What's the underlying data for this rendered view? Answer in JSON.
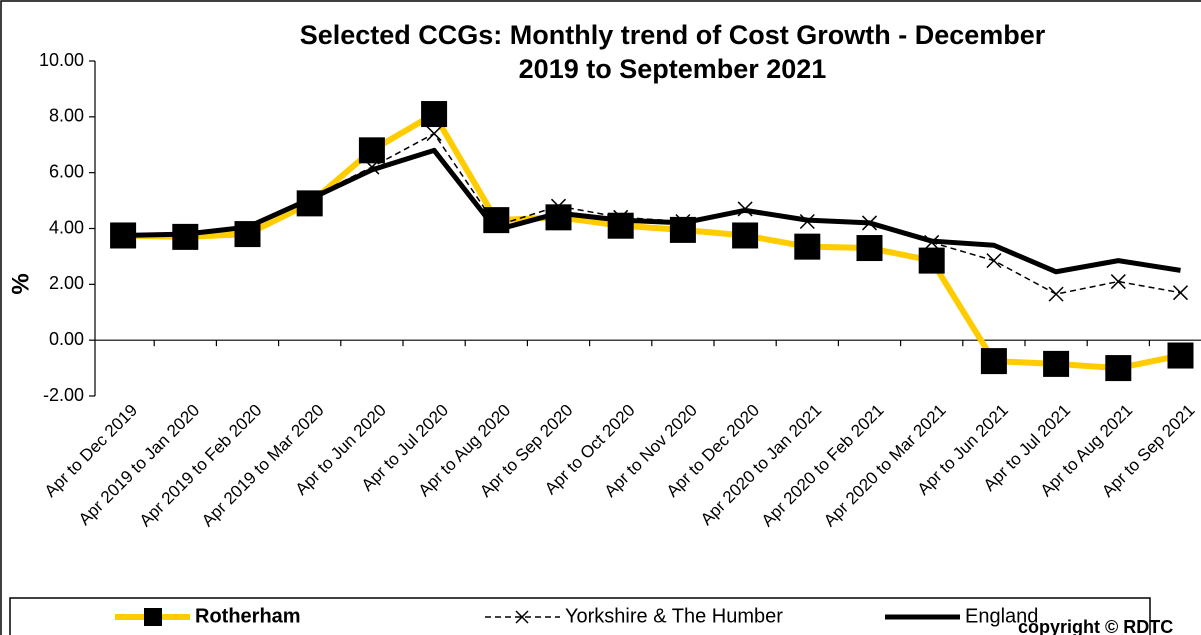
{
  "chart_data": {
    "type": "line",
    "title": "Selected CCGs: Monthly trend of Cost Growth - December\n2019 to September 2021",
    "ylabel": "%",
    "categories": [
      "Apr to Dec 2019",
      "Apr 2019 to Jan 2020",
      "Apr 2019 to Feb 2020",
      "Apr 2019 to Mar 2020",
      "Apr to Jun 2020",
      "Apr to Jul 2020",
      "Apr to Aug 2020",
      "Apr to Sep 2020",
      "Apr to Oct 2020",
      "Apr to Nov 2020",
      "Apr to Dec 2020",
      "Apr 2020 to Jan 2021",
      "Apr 2020 to Feb 2021",
      "Apr 2020 to Mar 2021",
      "Apr to Jun 2021",
      "Apr to Jul 2021",
      "Apr to Aug 2021",
      "Apr to Sep 2021"
    ],
    "series": [
      {
        "name": "Rotherham",
        "color": "#ffcc00",
        "marker": "square",
        "values": [
          3.75,
          3.7,
          3.8,
          4.9,
          6.8,
          8.1,
          4.3,
          4.4,
          4.1,
          3.95,
          3.75,
          3.35,
          3.3,
          2.85,
          -0.75,
          -0.85,
          -1.0,
          -0.55
        ]
      },
      {
        "name": "Yorkshire & The Humber",
        "color": "#000000",
        "marker": "x",
        "dashed": true,
        "values": [
          3.75,
          3.75,
          4.0,
          5.1,
          6.2,
          7.4,
          4.1,
          4.8,
          4.4,
          4.25,
          4.7,
          4.25,
          4.2,
          3.5,
          2.85,
          1.65,
          2.1,
          1.7
        ]
      },
      {
        "name": "England",
        "color": "#000000",
        "marker": "none",
        "values": [
          3.75,
          3.8,
          4.05,
          5.05,
          6.1,
          6.8,
          3.95,
          4.55,
          4.3,
          4.2,
          4.65,
          4.3,
          4.2,
          3.55,
          3.4,
          2.45,
          2.85,
          2.5
        ]
      }
    ],
    "ylim": [
      -2,
      10
    ],
    "yticks": [
      {
        "value": -2,
        "label": "-2.00"
      },
      {
        "value": 0,
        "label": "0.00"
      },
      {
        "value": 2,
        "label": "2.00"
      },
      {
        "value": 4,
        "label": "4.00"
      },
      {
        "value": 6,
        "label": "6.00"
      },
      {
        "value": 8,
        "label": "8.00"
      },
      {
        "value": 10,
        "label": "10.00"
      }
    ],
    "legend": "bottom",
    "footer": "copyright © RDTC"
  }
}
